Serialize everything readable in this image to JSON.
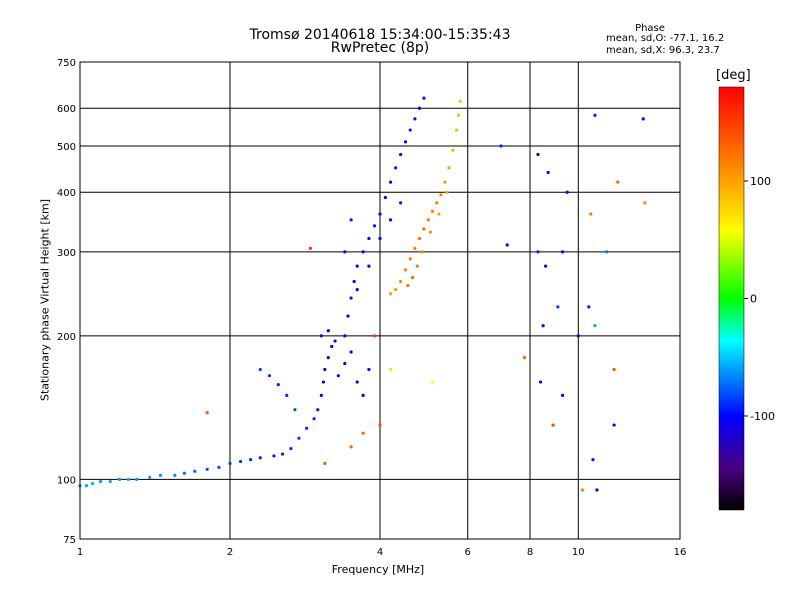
{
  "chart_data": {
    "type": "scatter",
    "title": "Tromsø 20140618 15:34:00-15:35:43",
    "subtitle": "RwPretec (8p)",
    "xlabel": "Frequency [MHz]",
    "ylabel": "Stationary phase Virtual Height [km]",
    "x_scale": "log",
    "y_scale": "log",
    "xlim": [
      1,
      16
    ],
    "ylim": [
      75,
      750
    ],
    "x_ticks": [
      1,
      2,
      4,
      6,
      8,
      10,
      16
    ],
    "y_ticks": [
      75,
      100,
      200,
      300,
      400,
      500,
      600,
      750
    ],
    "grid": true,
    "phase_box": {
      "title": "Phase",
      "o_stats": "mean, sd,O: -77.1, 16.2",
      "x_stats": "mean, sd,X:  96.3, 23.7"
    },
    "colorbar": {
      "label": "[deg]",
      "range": [
        -180,
        180
      ],
      "ticks": [
        100,
        0,
        -100
      ]
    },
    "series": [
      {
        "points": [
          [
            1.0,
            97,
            -60
          ],
          [
            1.03,
            97,
            -58
          ],
          [
            1.06,
            98,
            -55
          ],
          [
            1.1,
            99,
            -60
          ],
          [
            1.15,
            99,
            -57
          ],
          [
            1.2,
            100,
            -62
          ],
          [
            1.25,
            100,
            -58
          ],
          [
            1.3,
            100,
            -63
          ],
          [
            1.38,
            101,
            -60
          ],
          [
            1.45,
            102,
            -65
          ],
          [
            1.55,
            102,
            -68
          ],
          [
            1.62,
            103,
            -72
          ],
          [
            1.7,
            104,
            -75
          ],
          [
            1.8,
            105,
            -78
          ],
          [
            1.9,
            106,
            -82
          ],
          [
            2.0,
            108,
            -85
          ],
          [
            2.1,
            109,
            -88
          ],
          [
            2.2,
            110,
            -90
          ],
          [
            2.3,
            111,
            -92
          ],
          [
            2.45,
            112,
            -95
          ],
          [
            2.55,
            113,
            -92
          ],
          [
            2.65,
            116,
            -88
          ],
          [
            2.75,
            122,
            -85
          ],
          [
            2.85,
            128,
            -88
          ],
          [
            2.95,
            134,
            -90
          ],
          [
            3.0,
            140,
            -95
          ],
          [
            3.05,
            150,
            -100
          ],
          [
            3.08,
            160,
            -105
          ],
          [
            3.1,
            170,
            -110
          ],
          [
            3.15,
            180,
            -115
          ],
          [
            3.2,
            190,
            -118
          ],
          [
            3.3,
            165,
            -112
          ],
          [
            3.4,
            175,
            -110
          ],
          [
            3.5,
            185,
            -108
          ],
          [
            3.6,
            160,
            -112
          ],
          [
            3.7,
            150,
            -110
          ],
          [
            3.8,
            170,
            -105
          ],
          [
            3.45,
            220,
            -100
          ],
          [
            3.5,
            240,
            -98
          ],
          [
            3.55,
            260,
            -102
          ],
          [
            3.6,
            280,
            -105
          ],
          [
            3.7,
            300,
            -100
          ],
          [
            3.8,
            320,
            -98
          ],
          [
            3.9,
            340,
            -95
          ],
          [
            4.0,
            360,
            -100
          ],
          [
            4.1,
            390,
            -102
          ],
          [
            4.2,
            420,
            -98
          ],
          [
            4.3,
            450,
            -95
          ],
          [
            4.4,
            480,
            -100
          ],
          [
            4.5,
            510,
            -98
          ],
          [
            4.6,
            540,
            -95
          ],
          [
            4.7,
            570,
            -98
          ],
          [
            4.8,
            600,
            -100
          ],
          [
            4.9,
            630,
            -97
          ],
          [
            3.4,
            200,
            -110
          ],
          [
            3.6,
            250,
            -105
          ],
          [
            3.8,
            280,
            -102
          ],
          [
            4.0,
            320,
            -100
          ],
          [
            4.2,
            350,
            -98
          ],
          [
            4.4,
            380,
            -95
          ],
          [
            2.3,
            170,
            -85
          ],
          [
            2.4,
            165,
            -88
          ],
          [
            2.5,
            158,
            -92
          ],
          [
            2.6,
            150,
            -90
          ],
          [
            2.7,
            140,
            -80
          ],
          [
            3.05,
            200,
            -115
          ],
          [
            3.15,
            205,
            -118
          ],
          [
            3.25,
            195,
            -120
          ],
          [
            3.4,
            300,
            -98
          ],
          [
            3.5,
            350,
            -95
          ]
        ]
      },
      {
        "points": [
          [
            4.2,
            245,
            100
          ],
          [
            4.3,
            250,
            105
          ],
          [
            4.4,
            260,
            110
          ],
          [
            4.5,
            275,
            115
          ],
          [
            4.6,
            290,
            118
          ],
          [
            4.7,
            305,
            120
          ],
          [
            4.8,
            320,
            122
          ],
          [
            4.9,
            335,
            125
          ],
          [
            5.0,
            350,
            120
          ],
          [
            5.1,
            365,
            118
          ],
          [
            5.2,
            380,
            115
          ],
          [
            5.3,
            395,
            110
          ],
          [
            5.4,
            420,
            105
          ],
          [
            5.5,
            450,
            100
          ],
          [
            5.6,
            490,
            95
          ],
          [
            5.7,
            540,
            90
          ],
          [
            5.75,
            580,
            88
          ],
          [
            5.8,
            620,
            85
          ],
          [
            4.55,
            255,
            120
          ],
          [
            4.65,
            265,
            125
          ],
          [
            4.75,
            280,
            118
          ],
          [
            4.85,
            300,
            112
          ],
          [
            5.05,
            330,
            108
          ],
          [
            5.25,
            360,
            100
          ],
          [
            5.45,
            400,
            98
          ]
        ]
      },
      {
        "points": [
          [
            7.2,
            310,
            -100
          ],
          [
            8.3,
            300,
            -90
          ],
          [
            8.6,
            280,
            -105
          ],
          [
            9.3,
            300,
            -110
          ],
          [
            10.5,
            230,
            -95
          ],
          [
            10.8,
            210,
            -60
          ],
          [
            11.4,
            300,
            -70
          ],
          [
            8.5,
            210,
            -100
          ],
          [
            9.1,
            230,
            -85
          ],
          [
            10.0,
            200,
            -120
          ],
          [
            8.3,
            480,
            -110
          ],
          [
            10.8,
            580,
            -95
          ],
          [
            8.7,
            440,
            -100
          ],
          [
            9.5,
            400,
            -105
          ],
          [
            7.0,
            500,
            -90
          ],
          [
            13.5,
            570,
            -105
          ],
          [
            9.3,
            150,
            -100
          ],
          [
            10.7,
            110,
            -95
          ],
          [
            10.9,
            95,
            -110
          ],
          [
            8.4,
            160,
            -110
          ],
          [
            11.8,
            130,
            -100
          ],
          [
            10.6,
            360,
            120
          ],
          [
            12.0,
            420,
            130
          ],
          [
            13.6,
            380,
            110
          ],
          [
            10.2,
            95,
            120
          ],
          [
            7.8,
            180,
            130
          ],
          [
            11.8,
            170,
            140
          ],
          [
            8.9,
            130,
            150
          ],
          [
            3.5,
            117,
            130
          ],
          [
            3.1,
            108,
            135
          ],
          [
            4.0,
            130,
            140
          ],
          [
            3.7,
            125,
            128
          ],
          [
            1.8,
            138,
            140
          ],
          [
            2.9,
            305,
            150
          ],
          [
            4.2,
            170,
            45
          ],
          [
            5.1,
            160,
            55
          ],
          [
            3.9,
            200,
            150
          ]
        ]
      }
    ]
  }
}
